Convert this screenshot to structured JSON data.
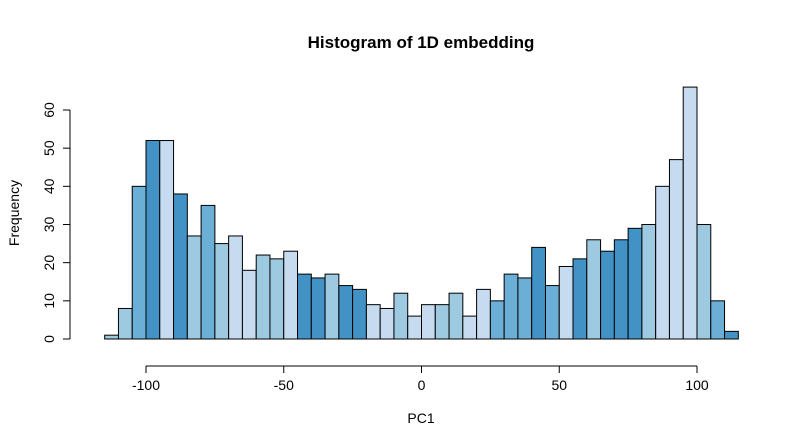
{
  "chart_data": {
    "type": "bar",
    "title": "Histogram of 1D embedding",
    "xlabel": "PC1",
    "ylabel": "Frequency",
    "xlim": [
      -115,
      115
    ],
    "ylim": [
      0,
      66
    ],
    "xticks": [
      -100,
      -50,
      0,
      50,
      100
    ],
    "yticks": [
      0,
      10,
      20,
      30,
      40,
      50,
      60
    ],
    "bin_width": 5,
    "bin_start": -115,
    "values": [
      1,
      8,
      40,
      52,
      52,
      38,
      27,
      35,
      25,
      27,
      18,
      22,
      21,
      23,
      17,
      16,
      17,
      14,
      13,
      9,
      8,
      12,
      6,
      9,
      9,
      12,
      6,
      13,
      10,
      17,
      16,
      24,
      14,
      19,
      21,
      26,
      23,
      26,
      29,
      30,
      40,
      47,
      66,
      30,
      10,
      2
    ],
    "palette": [
      "#C6DBEF",
      "#9ECAE1",
      "#6BAED6",
      "#4292C6"
    ],
    "grid": false,
    "legend": "none"
  }
}
